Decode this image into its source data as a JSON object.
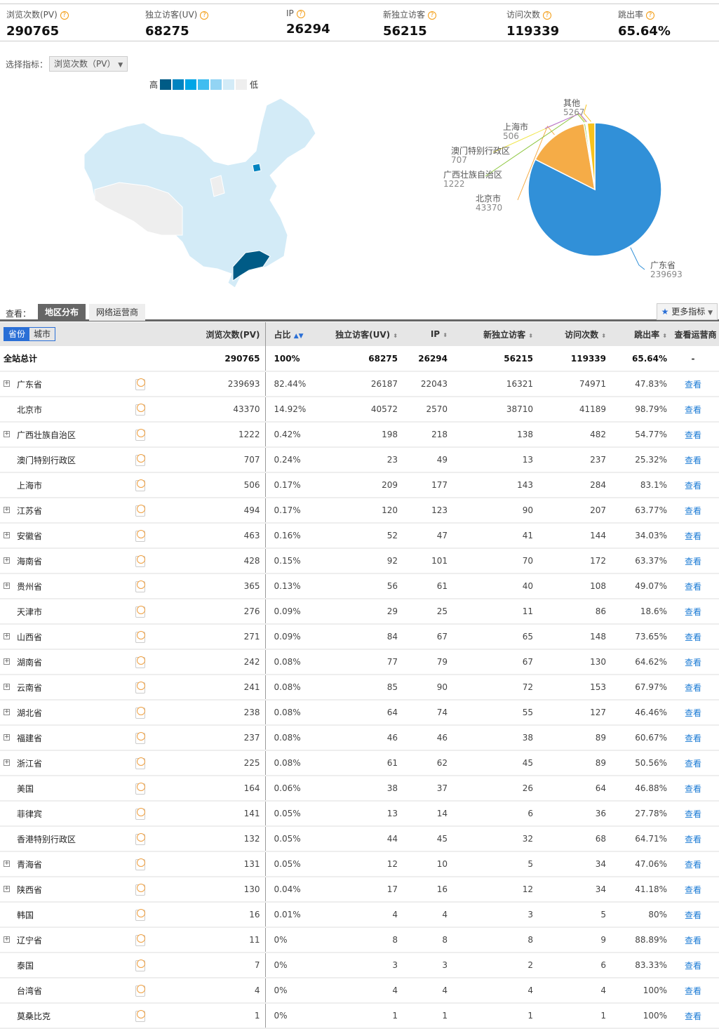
{
  "stats": [
    {
      "label": "浏览次数(PV)",
      "value": "290765"
    },
    {
      "label": "独立访客(UV)",
      "value": "68275"
    },
    {
      "label": "IP",
      "value": "26294"
    },
    {
      "label": "新独立访客",
      "value": "56215"
    },
    {
      "label": "访问次数",
      "value": "119339"
    },
    {
      "label": "跳出率",
      "value": "65.64%"
    }
  ],
  "help_icon": "?",
  "selector": {
    "label": "选择指标：",
    "value": "浏览次数（PV）"
  },
  "legend": {
    "high": "高",
    "low": "低",
    "colors": [
      "#005b86",
      "#0083c0",
      "#00a5e6",
      "#41bdf0",
      "#92d4f4",
      "#d3ebf7",
      "#eeeeee"
    ]
  },
  "map": {
    "highlight": "广东省",
    "beijing": "北京市"
  },
  "pie": {
    "slices": [
      {
        "name": "广东省",
        "value": 239693,
        "color": "#3190d8"
      },
      {
        "name": "北京市",
        "value": 43370,
        "color": "#f5ac47"
      },
      {
        "name": "广西壮族自治区",
        "value": 1222,
        "color": "#8dc63f"
      },
      {
        "name": "澳门特别行政区",
        "value": 707,
        "color": "#f0e64a"
      },
      {
        "name": "上海市",
        "value": 506,
        "color": "#b46ae0"
      },
      {
        "name": "其他",
        "value": 5267,
        "color": "#f7c21d"
      }
    ]
  },
  "tabs": {
    "label": "查看：",
    "items": [
      "地区分布",
      "网络运营商"
    ],
    "active": 0,
    "more": "更多指标"
  },
  "table": {
    "toggle": [
      "省份",
      "城市"
    ],
    "headers": [
      "浏览次数(PV)",
      "占比",
      "独立访客(UV)",
      "IP",
      "新独立访客",
      "访问次数",
      "跳出率",
      "查看运营商"
    ],
    "total": [
      "全站总计",
      "290765",
      "100%",
      "68275",
      "26294",
      "56215",
      "119339",
      "65.64%",
      "-"
    ],
    "link": "查看",
    "rows": [
      [
        "广东省",
        1,
        "239693",
        "82.44%",
        "26187",
        "22043",
        "16321",
        "74971",
        "47.83%"
      ],
      [
        "北京市",
        0,
        "43370",
        "14.92%",
        "40572",
        "2570",
        "38710",
        "41189",
        "98.79%"
      ],
      [
        "广西壮族自治区",
        1,
        "1222",
        "0.42%",
        "198",
        "218",
        "138",
        "482",
        "54.77%"
      ],
      [
        "澳门特别行政区",
        0,
        "707",
        "0.24%",
        "23",
        "49",
        "13",
        "237",
        "25.32%"
      ],
      [
        "上海市",
        0,
        "506",
        "0.17%",
        "209",
        "177",
        "143",
        "284",
        "83.1%"
      ],
      [
        "江苏省",
        1,
        "494",
        "0.17%",
        "120",
        "123",
        "90",
        "207",
        "63.77%"
      ],
      [
        "安徽省",
        1,
        "463",
        "0.16%",
        "52",
        "47",
        "41",
        "144",
        "34.03%"
      ],
      [
        "海南省",
        1,
        "428",
        "0.15%",
        "92",
        "101",
        "70",
        "172",
        "63.37%"
      ],
      [
        "贵州省",
        1,
        "365",
        "0.13%",
        "56",
        "61",
        "40",
        "108",
        "49.07%"
      ],
      [
        "天津市",
        0,
        "276",
        "0.09%",
        "29",
        "25",
        "11",
        "86",
        "18.6%"
      ],
      [
        "山西省",
        1,
        "271",
        "0.09%",
        "84",
        "67",
        "65",
        "148",
        "73.65%"
      ],
      [
        "湖南省",
        1,
        "242",
        "0.08%",
        "77",
        "79",
        "67",
        "130",
        "64.62%"
      ],
      [
        "云南省",
        1,
        "241",
        "0.08%",
        "85",
        "90",
        "72",
        "153",
        "67.97%"
      ],
      [
        "湖北省",
        1,
        "238",
        "0.08%",
        "64",
        "74",
        "55",
        "127",
        "46.46%"
      ],
      [
        "福建省",
        1,
        "237",
        "0.08%",
        "46",
        "46",
        "38",
        "89",
        "60.67%"
      ],
      [
        "浙江省",
        1,
        "225",
        "0.08%",
        "61",
        "62",
        "45",
        "89",
        "50.56%"
      ],
      [
        "美国",
        0,
        "164",
        "0.06%",
        "38",
        "37",
        "26",
        "64",
        "46.88%"
      ],
      [
        "菲律宾",
        0,
        "141",
        "0.05%",
        "13",
        "14",
        "6",
        "36",
        "27.78%"
      ],
      [
        "香港特别行政区",
        0,
        "132",
        "0.05%",
        "44",
        "45",
        "32",
        "68",
        "64.71%"
      ],
      [
        "青海省",
        1,
        "131",
        "0.05%",
        "12",
        "10",
        "5",
        "34",
        "47.06%"
      ],
      [
        "陕西省",
        1,
        "130",
        "0.04%",
        "17",
        "16",
        "12",
        "34",
        "41.18%"
      ],
      [
        "韩国",
        0,
        "16",
        "0.01%",
        "4",
        "4",
        "3",
        "5",
        "80%"
      ],
      [
        "辽宁省",
        1,
        "11",
        "0%",
        "8",
        "8",
        "8",
        "9",
        "88.89%"
      ],
      [
        "泰国",
        0,
        "7",
        "0%",
        "3",
        "3",
        "2",
        "6",
        "83.33%"
      ],
      [
        "台湾省",
        0,
        "4",
        "0%",
        "4",
        "4",
        "4",
        "4",
        "100%"
      ],
      [
        "莫桑比克",
        0,
        "1",
        "0%",
        "1",
        "1",
        "1",
        "1",
        "100%"
      ]
    ]
  }
}
